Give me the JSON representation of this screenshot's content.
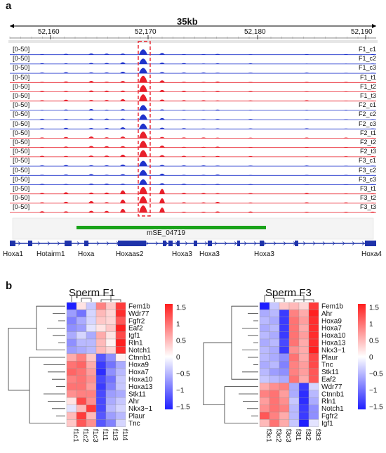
{
  "panel_a": {
    "letter": "a",
    "scale_label": "35kb",
    "coords": [
      "52,160",
      "52,170",
      "52,180",
      "52,190"
    ],
    "range_label": "[0-50]",
    "tracks": [
      {
        "name": "F1_c1",
        "color": "#1f33cc"
      },
      {
        "name": "F1_c2",
        "color": "#1f33cc"
      },
      {
        "name": "F1_c3",
        "color": "#1f33cc"
      },
      {
        "name": "F1_t1",
        "color": "#e8202b"
      },
      {
        "name": "F1_t2",
        "color": "#e8202b"
      },
      {
        "name": "F1_t3",
        "color": "#e8202b"
      },
      {
        "name": "F2_c1",
        "color": "#1f33cc"
      },
      {
        "name": "F2_c2",
        "color": "#1f33cc"
      },
      {
        "name": "F2_c3",
        "color": "#1f33cc"
      },
      {
        "name": "F2_t1",
        "color": "#e8202b"
      },
      {
        "name": "F2_t2",
        "color": "#e8202b"
      },
      {
        "name": "F2_t3",
        "color": "#e8202b"
      },
      {
        "name": "F3_c1",
        "color": "#1f33cc"
      },
      {
        "name": "F3_c2",
        "color": "#1f33cc"
      },
      {
        "name": "F3_c3",
        "color": "#1f33cc"
      },
      {
        "name": "F3_t1",
        "color": "#e8202b"
      },
      {
        "name": "F3_t2",
        "color": "#e8202b"
      },
      {
        "name": "F3_t3",
        "color": "#e8202b"
      }
    ],
    "enhancer_label": "mSE_04719",
    "enhancer_color": "#1aa31a",
    "genes": [
      "Hoxa1",
      "Hotairm1",
      "Hoxa",
      "Hoxaas2",
      "Hoxa3",
      "Hoxa3",
      "Hoxa3",
      "Hoxa4"
    ]
  },
  "panel_b": {
    "letter": "b",
    "heatmaps": [
      {
        "title": "Sperm F1",
        "rows": [
          "Fem1b",
          "Wdr77",
          "Fgfr2",
          "Eaf2",
          "Igf1",
          "Rln1",
          "Notch1",
          "Ctnnb1",
          "Hoxa9",
          "Hoxa7",
          "Hoxa10",
          "Hoxa13",
          "Stk11",
          "Ahr",
          "Nkx3−1",
          "Plaur",
          "Tnc"
        ],
        "cols": [
          "f1c1",
          "f1c2",
          "f1c3",
          "f1t1",
          "f1t3",
          "f1t4"
        ],
        "values": [
          [
            -1.6,
            0.2,
            -0.4,
            0.9,
            0.4,
            1.4
          ],
          [
            -0.7,
            -1.0,
            -0.3,
            0.5,
            0.3,
            1.5
          ],
          [
            -0.9,
            -0.6,
            -0.3,
            0.4,
            0.3,
            1.2
          ],
          [
            -0.8,
            -0.7,
            -0.2,
            0.2,
            0.4,
            1.6
          ],
          [
            -0.6,
            -0.3,
            -0.6,
            0.6,
            0.2,
            1.3
          ],
          [
            -0.8,
            -0.5,
            -0.5,
            0.5,
            0.1,
            1.6
          ],
          [
            -0.7,
            -0.6,
            -0.5,
            0.5,
            0.3,
            1.5
          ],
          [
            0.6,
            0.9,
            0.4,
            -1.2,
            -0.8,
            0.1
          ],
          [
            1.0,
            1.1,
            0.6,
            -1.4,
            -1.0,
            -0.6
          ],
          [
            1.1,
            1.0,
            0.7,
            -1.5,
            -0.8,
            -0.5
          ],
          [
            0.9,
            1.0,
            0.8,
            -1.3,
            -1.0,
            -0.4
          ],
          [
            1.0,
            1.0,
            0.7,
            -1.4,
            -0.9,
            -0.4
          ],
          [
            0.8,
            0.9,
            0.9,
            -1.3,
            -0.7,
            -0.6
          ],
          [
            0.2,
            1.3,
            0.8,
            -1.3,
            -0.6,
            -0.4
          ],
          [
            -0.2,
            0.5,
            1.4,
            -1.3,
            -0.5,
            -0.3
          ],
          [
            0.5,
            1.4,
            0.5,
            -1.2,
            -0.7,
            -0.5
          ],
          [
            0.4,
            1.2,
            0.8,
            -1.2,
            -0.9,
            -0.3
          ]
        ]
      },
      {
        "title": "Sperm F3",
        "rows": [
          "Fem1b",
          "Ahr",
          "Hoxa9",
          "Hoxa7",
          "Hoxa10",
          "Hoxa13",
          "Nkx3−1",
          "Plaur",
          "Tnc",
          "Stk11",
          "Eaf2",
          "Wdr77",
          "Ctnnb1",
          "Rln1",
          "Notch1",
          "Fgfr2",
          "Igf1"
        ],
        "cols": [
          "f3c1",
          "f3c2",
          "f3c3",
          "f3t1",
          "f3t2",
          "f3t3"
        ],
        "values": [
          [
            -1.6,
            -0.4,
            0.4,
            0.5,
            0.3,
            1.4
          ],
          [
            -0.6,
            -0.5,
            -1.4,
            0.9,
            0.6,
            1.6
          ],
          [
            -0.5,
            -0.6,
            -1.4,
            1.0,
            0.7,
            1.5
          ],
          [
            -0.6,
            -0.5,
            -1.4,
            1.0,
            0.6,
            1.5
          ],
          [
            -0.5,
            -0.6,
            -1.4,
            1.0,
            0.7,
            1.5
          ],
          [
            -0.6,
            -0.5,
            -1.3,
            1.0,
            0.6,
            1.5
          ],
          [
            -0.5,
            -0.6,
            -1.4,
            0.8,
            0.6,
            1.6
          ],
          [
            -0.5,
            -0.6,
            -0.8,
            1.0,
            0.6,
            1.3
          ],
          [
            -0.6,
            -0.5,
            -0.9,
            0.9,
            0.7,
            1.3
          ],
          [
            -0.5,
            -0.7,
            -0.8,
            0.9,
            0.7,
            1.2
          ],
          [
            -0.4,
            -0.5,
            -0.6,
            1.0,
            0.6,
            1.2
          ],
          [
            0.6,
            0.8,
            0.9,
            -0.6,
            -1.4,
            -0.3
          ],
          [
            0.9,
            1.0,
            0.7,
            -0.6,
            -1.5,
            -0.5
          ],
          [
            0.7,
            1.0,
            0.8,
            -0.4,
            -1.5,
            -0.6
          ],
          [
            0.8,
            1.0,
            0.9,
            -0.5,
            -1.4,
            -0.8
          ],
          [
            1.2,
            0.9,
            0.6,
            -0.5,
            -1.4,
            -0.8
          ],
          [
            0.5,
            1.0,
            0.6,
            -0.4,
            -1.6,
            -0.2
          ]
        ]
      }
    ],
    "colorbar_ticks": [
      "1.5",
      "1",
      "0.5",
      "0",
      "−0.5",
      "−1",
      "−1.5"
    ]
  }
}
